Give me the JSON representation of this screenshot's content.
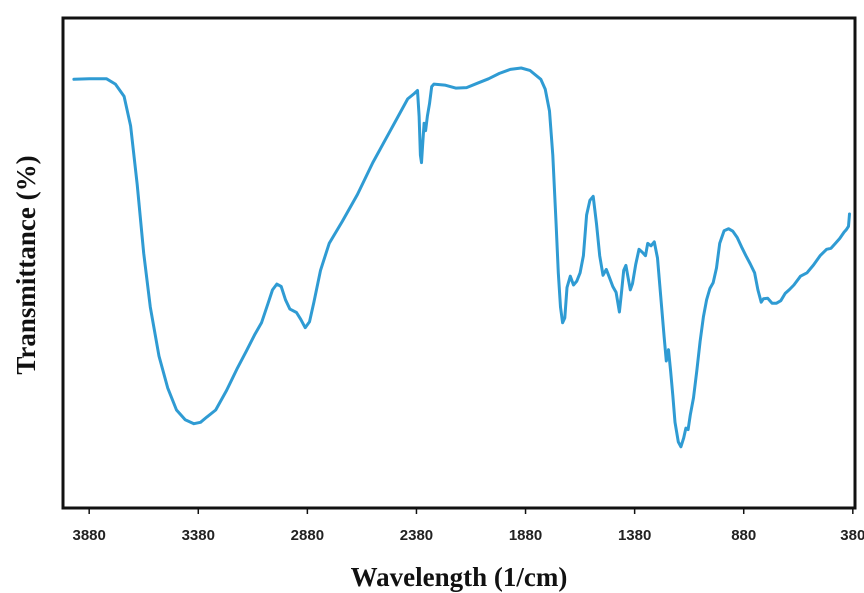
{
  "chart_data": {
    "type": "line",
    "xlabel": "Wavelength (1/cm)",
    "ylabel": "Transmittance (%)",
    "x_reversed": true,
    "xlim": [
      4000,
      370
    ],
    "ylim": [
      0,
      100
    ],
    "grid": false,
    "legend": "none",
    "xticks": [
      3880,
      3380,
      2880,
      2380,
      1880,
      1380,
      880,
      380
    ],
    "colors": {
      "line": "#2f9bd3",
      "frame": "#111111"
    },
    "series": [
      {
        "points": [
          [
            3950,
            87.5
          ],
          [
            3880,
            87.6
          ],
          [
            3800,
            87.6
          ],
          [
            3760,
            86.5
          ],
          [
            3720,
            84
          ],
          [
            3690,
            78
          ],
          [
            3660,
            66
          ],
          [
            3630,
            52
          ],
          [
            3600,
            41
          ],
          [
            3560,
            31
          ],
          [
            3520,
            24.5
          ],
          [
            3480,
            20
          ],
          [
            3440,
            18
          ],
          [
            3400,
            17.2
          ],
          [
            3370,
            17.5
          ],
          [
            3340,
            18.6
          ],
          [
            3300,
            20
          ],
          [
            3250,
            24
          ],
          [
            3200,
            28.6
          ],
          [
            3160,
            32
          ],
          [
            3120,
            35.5
          ],
          [
            3090,
            37.8
          ],
          [
            3060,
            41.8
          ],
          [
            3040,
            44.5
          ],
          [
            3020,
            45.7
          ],
          [
            3000,
            45.2
          ],
          [
            2980,
            42.5
          ],
          [
            2960,
            40.6
          ],
          [
            2930,
            39.9
          ],
          [
            2910,
            38.5
          ],
          [
            2890,
            36.8
          ],
          [
            2870,
            38
          ],
          [
            2850,
            42
          ],
          [
            2820,
            48.5
          ],
          [
            2780,
            54
          ],
          [
            2720,
            58.5
          ],
          [
            2650,
            64
          ],
          [
            2580,
            70.5
          ],
          [
            2500,
            77
          ],
          [
            2420,
            83.5
          ],
          [
            2390,
            84.6
          ],
          [
            2375,
            85.2
          ],
          [
            2368,
            80
          ],
          [
            2362,
            72
          ],
          [
            2357,
            70.5
          ],
          [
            2352,
            74
          ],
          [
            2345,
            78.5
          ],
          [
            2338,
            77
          ],
          [
            2330,
            80
          ],
          [
            2320,
            82.5
          ],
          [
            2310,
            86
          ],
          [
            2300,
            86.5
          ],
          [
            2250,
            86.3
          ],
          [
            2200,
            85.7
          ],
          [
            2150,
            85.8
          ],
          [
            2100,
            86.7
          ],
          [
            2050,
            87.6
          ],
          [
            2000,
            88.7
          ],
          [
            1950,
            89.5
          ],
          [
            1900,
            89.8
          ],
          [
            1860,
            89.3
          ],
          [
            1810,
            87.5
          ],
          [
            1790,
            85.5
          ],
          [
            1770,
            81
          ],
          [
            1755,
            72
          ],
          [
            1740,
            58
          ],
          [
            1730,
            48
          ],
          [
            1720,
            41
          ],
          [
            1710,
            37.8
          ],
          [
            1700,
            38.8
          ],
          [
            1690,
            45
          ],
          [
            1675,
            47.3
          ],
          [
            1660,
            45.5
          ],
          [
            1645,
            46.3
          ],
          [
            1630,
            48
          ],
          [
            1615,
            51.5
          ],
          [
            1600,
            59.8
          ],
          [
            1585,
            62.8
          ],
          [
            1570,
            63.6
          ],
          [
            1555,
            58
          ],
          [
            1540,
            51.5
          ],
          [
            1525,
            47.5
          ],
          [
            1510,
            48.7
          ],
          [
            1495,
            47
          ],
          [
            1480,
            45.2
          ],
          [
            1465,
            44
          ],
          [
            1450,
            40
          ],
          [
            1440,
            44
          ],
          [
            1430,
            48.5
          ],
          [
            1420,
            49.5
          ],
          [
            1410,
            47
          ],
          [
            1400,
            44.5
          ],
          [
            1390,
            45.8
          ],
          [
            1375,
            49.7
          ],
          [
            1360,
            52.8
          ],
          [
            1345,
            52.2
          ],
          [
            1330,
            51.5
          ],
          [
            1320,
            54
          ],
          [
            1305,
            53.5
          ],
          [
            1290,
            54.3
          ],
          [
            1275,
            51
          ],
          [
            1260,
            43
          ],
          [
            1245,
            35
          ],
          [
            1235,
            30
          ],
          [
            1225,
            32.3
          ],
          [
            1215,
            28
          ],
          [
            1205,
            23
          ],
          [
            1195,
            17.5
          ],
          [
            1180,
            13.5
          ],
          [
            1168,
            12.5
          ],
          [
            1155,
            14.3
          ],
          [
            1145,
            16.3
          ],
          [
            1135,
            16
          ],
          [
            1125,
            19
          ],
          [
            1110,
            22.5
          ],
          [
            1095,
            28
          ],
          [
            1080,
            34
          ],
          [
            1065,
            39
          ],
          [
            1050,
            42.5
          ],
          [
            1035,
            44.8
          ],
          [
            1020,
            46
          ],
          [
            1005,
            49
          ],
          [
            990,
            54
          ],
          [
            970,
            56.6
          ],
          [
            950,
            57
          ],
          [
            930,
            56.5
          ],
          [
            910,
            55.2
          ],
          [
            890,
            53.3
          ],
          [
            870,
            51.5
          ],
          [
            850,
            49.8
          ],
          [
            830,
            48
          ],
          [
            815,
            44.5
          ],
          [
            800,
            42
          ],
          [
            790,
            42.7
          ],
          [
            770,
            42.8
          ],
          [
            750,
            41.8
          ],
          [
            730,
            41.8
          ],
          [
            710,
            42.3
          ],
          [
            690,
            43.8
          ],
          [
            670,
            44.6
          ],
          [
            650,
            45.5
          ],
          [
            620,
            47.3
          ],
          [
            590,
            48
          ],
          [
            560,
            49.6
          ],
          [
            530,
            51.5
          ],
          [
            500,
            52.8
          ],
          [
            480,
            53
          ],
          [
            460,
            54
          ],
          [
            440,
            55
          ],
          [
            420,
            56.3
          ],
          [
            410,
            56.8
          ],
          [
            400,
            57.5
          ],
          [
            395,
            60
          ]
        ]
      }
    ]
  }
}
